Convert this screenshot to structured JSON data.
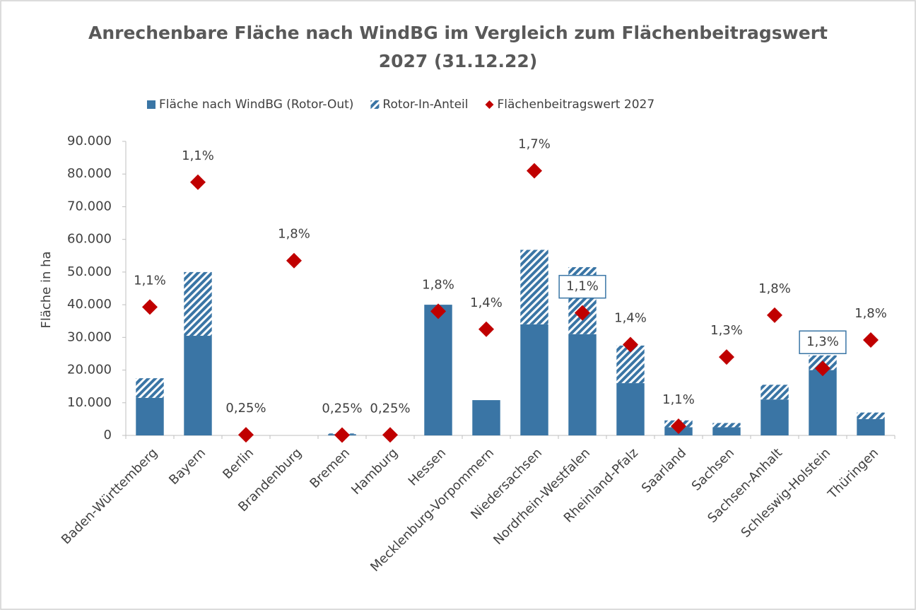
{
  "chart_data": {
    "type": "bar",
    "title": [
      "Anrechenbare Fläche nach WindBG im Vergleich zum Flächenbeitragswert",
      "2027 (31.12.22)"
    ],
    "y_label": "Fläche in ha",
    "categories": [
      "Baden-Württemberg",
      "Bayern",
      "Berlin",
      "Brandenburg",
      "Bremen",
      "Hamburg",
      "Hessen",
      "Mecklenburg-Vorpommern",
      "Niedersachsen",
      "Nordrhein-Westfalen",
      "Rheinland-Pfalz",
      "Saarland",
      "Sachsen",
      "Sachsen-Anhalt",
      "Schleswig-Holstein",
      "Thüringen"
    ],
    "series": [
      {
        "name": "Fläche nach WindBG (Rotor-Out)",
        "color": "#3a75a5",
        "kind": "bar",
        "values": [
          11500,
          30500,
          0,
          0,
          400,
          0,
          40000,
          10800,
          34000,
          31000,
          16000,
          2500,
          2500,
          11000,
          20000,
          5000
        ]
      },
      {
        "name": "Rotor-In-Anteil",
        "color": "#3a75a5",
        "kind": "hatched-bar",
        "values": [
          6000,
          19500,
          0,
          0,
          200,
          0,
          0,
          0,
          22800,
          20500,
          11500,
          2100,
          1300,
          4500,
          4500,
          2000
        ]
      },
      {
        "name": "Flächenbeitragswert 2027",
        "color": "#c00000",
        "kind": "diamond",
        "values": [
          39300,
          77500,
          200,
          53500,
          100,
          150,
          38000,
          32500,
          81000,
          37500,
          27800,
          2800,
          24000,
          36800,
          20500,
          29200
        ]
      }
    ],
    "annotations": [
      {
        "text": "1,1%",
        "boxed": false
      },
      {
        "text": "1,1%",
        "boxed": false
      },
      {
        "text": "0,25%",
        "boxed": false
      },
      {
        "text": "1,8%",
        "boxed": false
      },
      {
        "text": "0,25%",
        "boxed": false
      },
      {
        "text": "0,25%",
        "boxed": false
      },
      {
        "text": "1,8%",
        "boxed": false
      },
      {
        "text": "1,4%",
        "boxed": false
      },
      {
        "text": "1,7%",
        "boxed": false
      },
      {
        "text": "1,1%",
        "boxed": true
      },
      {
        "text": "1,4%",
        "boxed": false
      },
      {
        "text": "1,1%",
        "boxed": false
      },
      {
        "text": "1,3%",
        "boxed": false
      },
      {
        "text": "1,8%",
        "boxed": false
      },
      {
        "text": "1,3%",
        "boxed": true
      },
      {
        "text": "1,8%",
        "boxed": false
      }
    ],
    "ylim": [
      0,
      90000
    ],
    "yticks": [
      0,
      {
        "value": 10000,
        "label": "10.000"
      },
      {
        "value": 20000,
        "label": "20.000"
      },
      {
        "value": 30000,
        "label": "30.000"
      },
      {
        "value": 40000,
        "label": "40.000"
      },
      {
        "value": 50000,
        "label": "50.000"
      },
      {
        "value": 60000,
        "label": "60.000"
      },
      {
        "value": 70000,
        "label": "70.000"
      },
      {
        "value": 80000,
        "label": "80.000"
      },
      {
        "value": 90000,
        "label": "90.000"
      }
    ],
    "legend": "top",
    "grid": false
  }
}
